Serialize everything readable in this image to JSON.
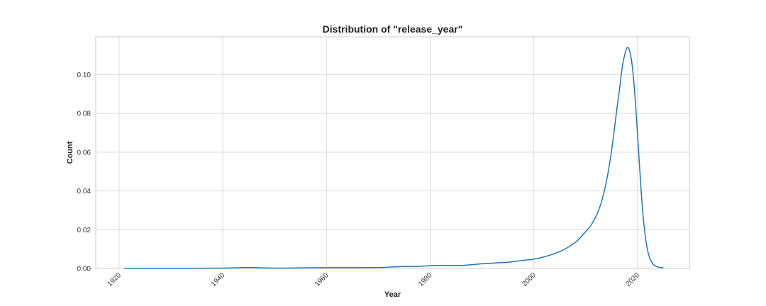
{
  "chart_data": {
    "type": "line",
    "title": "Distribution of \"release_year\"",
    "xlabel": "Year",
    "ylabel": "Count",
    "xlim": [
      1915.5,
      2030
    ],
    "ylim": [
      0,
      0.1195
    ],
    "xticks": [
      1920,
      1940,
      1960,
      1980,
      2000,
      2020
    ],
    "yticks": [
      0.0,
      0.02,
      0.04,
      0.06,
      0.08,
      0.1
    ],
    "grid": true,
    "series_color": "#1f77b4",
    "series": [
      {
        "x": [
          1921,
          1925,
          1930,
          1935,
          1940,
          1942,
          1945,
          1948,
          1950,
          1952,
          1955,
          1960,
          1965,
          1970,
          1973,
          1975,
          1978,
          1980,
          1982,
          1985,
          1987,
          1990,
          1993,
          1995,
          1998,
          2000,
          2002,
          2004,
          2006,
          2008,
          2009,
          2010,
          2011,
          2012,
          2013,
          2014,
          2015,
          2016,
          2016.5,
          2017,
          2017.5,
          2018,
          2018.5,
          2019,
          2019.5,
          2020,
          2020.5,
          2021,
          2021.5,
          2022,
          2022.5,
          2023,
          2023.5,
          2024,
          2025
        ],
        "y": [
          0.0001,
          0.0001,
          0.0001,
          0.0001,
          0.0002,
          0.0003,
          0.0005,
          0.0003,
          0.0002,
          0.0002,
          0.0003,
          0.0004,
          0.0004,
          0.0005,
          0.0008,
          0.001,
          0.0011,
          0.0014,
          0.0016,
          0.0015,
          0.0017,
          0.0024,
          0.0029,
          0.0032,
          0.0042,
          0.0048,
          0.006,
          0.0077,
          0.01,
          0.0135,
          0.016,
          0.019,
          0.0222,
          0.027,
          0.034,
          0.045,
          0.061,
          0.082,
          0.092,
          0.103,
          0.11,
          0.114,
          0.112,
          0.104,
          0.089,
          0.069,
          0.048,
          0.029,
          0.0165,
          0.0085,
          0.0045,
          0.0022,
          0.0012,
          0.0007,
          0.0003
        ]
      }
    ]
  }
}
